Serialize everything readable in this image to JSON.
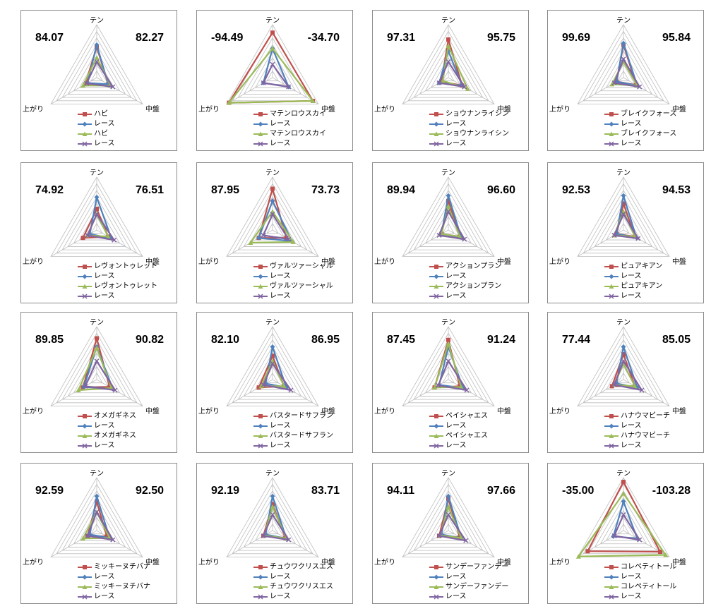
{
  "axes": [
    "テン",
    "中盤",
    "上がり"
  ],
  "chart_data": [
    {
      "type": "radar",
      "scores": [
        "84.07",
        "82.27"
      ],
      "legend": [
        "ハビ",
        "レース",
        "ハビ",
        "レース"
      ],
      "series": [
        {
          "name": "ハビ",
          "color": "#c0504d",
          "marker": "square",
          "values": [
            0.58,
            0.25,
            0.25
          ]
        },
        {
          "name": "レース",
          "color": "#4f81bd",
          "marker": "diamond",
          "values": [
            0.62,
            0.25,
            0.2
          ]
        },
        {
          "name": "ハビ",
          "color": "#9bbb59",
          "marker": "triangle",
          "values": [
            0.38,
            0.3,
            0.3
          ]
        },
        {
          "name": "レース",
          "color": "#8064a2",
          "marker": "x",
          "values": [
            0.3,
            0.35,
            0.22
          ]
        }
      ]
    },
    {
      "type": "radar",
      "scores": [
        "-94.49",
        "-34.70"
      ],
      "legend": [
        "マテンロウスカイ",
        "レース",
        "マテンロウスカイ",
        "レース"
      ],
      "series": [
        {
          "name": "マテンロウスカイ",
          "color": "#c0504d",
          "marker": "square",
          "values": [
            0.85,
            0.88,
            0.95
          ]
        },
        {
          "name": "レース",
          "color": "#4f81bd",
          "marker": "diamond",
          "values": [
            0.55,
            0.35,
            0.2
          ]
        },
        {
          "name": "マテンロウスカイ",
          "color": "#9bbb59",
          "marker": "triangle",
          "values": [
            0.55,
            0.88,
            0.95
          ]
        },
        {
          "name": "レース",
          "color": "#8064a2",
          "marker": "x",
          "values": [
            0.25,
            0.35,
            0.2
          ]
        }
      ]
    },
    {
      "type": "radar",
      "scores": [
        "97.31",
        "95.75"
      ],
      "legend": [
        "ショウナンライシン",
        "レース",
        "ショウナンライシン",
        "レース"
      ],
      "series": [
        {
          "name": "ショウナンライシン",
          "color": "#c0504d",
          "marker": "square",
          "values": [
            0.72,
            0.3,
            0.15
          ]
        },
        {
          "name": "レース",
          "color": "#4f81bd",
          "marker": "diamond",
          "values": [
            0.5,
            0.3,
            0.2
          ]
        },
        {
          "name": "ショウナンライシン",
          "color": "#9bbb59",
          "marker": "triangle",
          "values": [
            0.6,
            0.42,
            0.12
          ]
        },
        {
          "name": "レース",
          "color": "#8064a2",
          "marker": "x",
          "values": [
            0.3,
            0.35,
            0.2
          ]
        }
      ]
    },
    {
      "type": "radar",
      "scores": [
        "99.69",
        "95.84"
      ],
      "legend": [
        "ブレイクフォース",
        "レース",
        "ブレイクフォース",
        "レース"
      ],
      "series": [
        {
          "name": "ブレイクフォース",
          "color": "#c0504d",
          "marker": "square",
          "values": [
            0.62,
            0.28,
            0.15
          ]
        },
        {
          "name": "レース",
          "color": "#4f81bd",
          "marker": "diamond",
          "values": [
            0.65,
            0.3,
            0.15
          ]
        },
        {
          "name": "ブレイクフォース",
          "color": "#9bbb59",
          "marker": "triangle",
          "values": [
            0.3,
            0.3,
            0.25
          ]
        },
        {
          "name": "レース",
          "color": "#8064a2",
          "marker": "x",
          "values": [
            0.35,
            0.35,
            0.2
          ]
        }
      ]
    },
    {
      "type": "radar",
      "scores": [
        "74.92",
        "76.51"
      ],
      "legend": [
        "レヴォントゥレット",
        "レース",
        "レヴォントゥレット",
        "レース"
      ],
      "series": [
        {
          "name": "レヴォントゥレット",
          "color": "#c0504d",
          "marker": "square",
          "values": [
            0.4,
            0.25,
            0.3
          ]
        },
        {
          "name": "レース",
          "color": "#4f81bd",
          "marker": "diamond",
          "values": [
            0.62,
            0.32,
            0.15
          ]
        },
        {
          "name": "レヴォントゥレット",
          "color": "#9bbb59",
          "marker": "triangle",
          "values": [
            0.3,
            0.25,
            0.2
          ]
        },
        {
          "name": "レース",
          "color": "#8064a2",
          "marker": "x",
          "values": [
            0.3,
            0.38,
            0.2
          ]
        }
      ]
    },
    {
      "type": "radar",
      "scores": [
        "87.95",
        "73.73"
      ],
      "legend": [
        "ヴァルツァーシャル",
        "レース",
        "ヴァルツァーシャル",
        "レース"
      ],
      "series": [
        {
          "name": "ヴァルツァーシャル",
          "color": "#c0504d",
          "marker": "square",
          "values": [
            0.78,
            0.3,
            0.3
          ]
        },
        {
          "name": "レース",
          "color": "#4f81bd",
          "marker": "diamond",
          "values": [
            0.55,
            0.42,
            0.3
          ]
        },
        {
          "name": "ヴァルツァーシャル",
          "color": "#9bbb59",
          "marker": "triangle",
          "values": [
            0.35,
            0.45,
            0.48
          ]
        },
        {
          "name": "レース",
          "color": "#8064a2",
          "marker": "x",
          "values": [
            0.3,
            0.35,
            0.2
          ]
        }
      ]
    },
    {
      "type": "radar",
      "scores": [
        "89.94",
        "96.60"
      ],
      "legend": [
        "アクションプラン",
        "レース",
        "アクションプラン",
        "レース"
      ],
      "series": [
        {
          "name": "アクションプラン",
          "color": "#c0504d",
          "marker": "square",
          "values": [
            0.55,
            0.25,
            0.15
          ]
        },
        {
          "name": "レース",
          "color": "#4f81bd",
          "marker": "diamond",
          "values": [
            0.65,
            0.28,
            0.15
          ]
        },
        {
          "name": "アクションプラン",
          "color": "#9bbb59",
          "marker": "triangle",
          "values": [
            0.45,
            0.25,
            0.15
          ]
        },
        {
          "name": "レース",
          "color": "#8064a2",
          "marker": "x",
          "values": [
            0.35,
            0.35,
            0.2
          ]
        }
      ]
    },
    {
      "type": "radar",
      "scores": [
        "92.53",
        "94.53"
      ],
      "legend": [
        "ピュアキアン",
        "レース",
        "ピュアキアン",
        "レース"
      ],
      "series": [
        {
          "name": "ピュアキアン",
          "color": "#c0504d",
          "marker": "square",
          "values": [
            0.5,
            0.25,
            0.15
          ]
        },
        {
          "name": "レース",
          "color": "#4f81bd",
          "marker": "diamond",
          "values": [
            0.65,
            0.28,
            0.15
          ]
        },
        {
          "name": "ピュアキアン",
          "color": "#9bbb59",
          "marker": "triangle",
          "values": [
            0.35,
            0.25,
            0.2
          ]
        },
        {
          "name": "レース",
          "color": "#8064a2",
          "marker": "x",
          "values": [
            0.3,
            0.32,
            0.2
          ]
        }
      ]
    },
    {
      "type": "radar",
      "scores": [
        "89.85",
        "90.82"
      ],
      "legend": [
        "オメガギネス",
        "レース",
        "オメガギネス",
        "レース"
      ],
      "series": [
        {
          "name": "オメガギネス",
          "color": "#c0504d",
          "marker": "square",
          "values": [
            0.78,
            0.28,
            0.3
          ]
        },
        {
          "name": "レース",
          "color": "#4f81bd",
          "marker": "diamond",
          "values": [
            0.62,
            0.35,
            0.28
          ]
        },
        {
          "name": "オメガギネス",
          "color": "#9bbb59",
          "marker": "triangle",
          "values": [
            0.6,
            0.32,
            0.4
          ]
        },
        {
          "name": "レース",
          "color": "#8064a2",
          "marker": "x",
          "values": [
            0.35,
            0.4,
            0.25
          ]
        }
      ]
    },
    {
      "type": "radar",
      "scores": [
        "82.10",
        "86.95"
      ],
      "legend": [
        "バスタードサフラン",
        "レース",
        "バスタードサフラン",
        "レース"
      ],
      "series": [
        {
          "name": "バスタードサフラン",
          "color": "#c0504d",
          "marker": "square",
          "values": [
            0.45,
            0.25,
            0.3
          ]
        },
        {
          "name": "レース",
          "color": "#4f81bd",
          "marker": "diamond",
          "values": [
            0.62,
            0.3,
            0.15
          ]
        },
        {
          "name": "バスタードサフラン",
          "color": "#9bbb59",
          "marker": "triangle",
          "values": [
            0.35,
            0.25,
            0.25
          ]
        },
        {
          "name": "レース",
          "color": "#8064a2",
          "marker": "x",
          "values": [
            0.3,
            0.4,
            0.2
          ]
        }
      ]
    },
    {
      "type": "radar",
      "scores": [
        "87.45",
        "91.24"
      ],
      "legend": [
        "ペイシャエス",
        "レース",
        "ペイシャエス",
        "レース"
      ],
      "series": [
        {
          "name": "ペイシャエス",
          "color": "#c0504d",
          "marker": "square",
          "values": [
            0.75,
            0.25,
            0.3
          ]
        },
        {
          "name": "レース",
          "color": "#4f81bd",
          "marker": "diamond",
          "values": [
            0.62,
            0.32,
            0.2
          ]
        },
        {
          "name": "ペイシャエス",
          "color": "#9bbb59",
          "marker": "triangle",
          "values": [
            0.68,
            0.28,
            0.3
          ]
        },
        {
          "name": "レース",
          "color": "#8064a2",
          "marker": "x",
          "values": [
            0.35,
            0.4,
            0.22
          ]
        }
      ]
    },
    {
      "type": "radar",
      "scores": [
        "77.44",
        "85.05"
      ],
      "legend": [
        "ハナウマビーチ",
        "レース",
        "ハナウマビーチ",
        "レース"
      ],
      "series": [
        {
          "name": "ハナウマビーチ",
          "color": "#c0504d",
          "marker": "square",
          "values": [
            0.48,
            0.25,
            0.25
          ]
        },
        {
          "name": "レース",
          "color": "#4f81bd",
          "marker": "diamond",
          "values": [
            0.62,
            0.3,
            0.15
          ]
        },
        {
          "name": "ハナウマビーチ",
          "color": "#9bbb59",
          "marker": "triangle",
          "values": [
            0.3,
            0.25,
            0.2
          ]
        },
        {
          "name": "レース",
          "color": "#8064a2",
          "marker": "x",
          "values": [
            0.35,
            0.4,
            0.2
          ]
        }
      ]
    },
    {
      "type": "radar",
      "scores": [
        "92.59",
        "92.50"
      ],
      "legend": [
        "ミッキーヌチバナ",
        "レース",
        "ミッキーヌチバナ",
        "レース"
      ],
      "series": [
        {
          "name": "ミッキーヌチバナ",
          "color": "#c0504d",
          "marker": "square",
          "values": [
            0.55,
            0.22,
            0.2
          ]
        },
        {
          "name": "レース",
          "color": "#4f81bd",
          "marker": "diamond",
          "values": [
            0.65,
            0.28,
            0.15
          ]
        },
        {
          "name": "ミッキーヌチバナ",
          "color": "#9bbb59",
          "marker": "triangle",
          "values": [
            0.35,
            0.28,
            0.3
          ]
        },
        {
          "name": "レース",
          "color": "#8064a2",
          "marker": "x",
          "values": [
            0.35,
            0.35,
            0.2
          ]
        }
      ]
    },
    {
      "type": "radar",
      "scores": [
        "92.19",
        "83.71"
      ],
      "legend": [
        "チュウワクリスエス",
        "レース",
        "チュウワクリスエス",
        "レース"
      ],
      "series": [
        {
          "name": "チュウワクリスエス",
          "color": "#c0504d",
          "marker": "square",
          "values": [
            0.5,
            0.28,
            0.2
          ]
        },
        {
          "name": "レース",
          "color": "#4f81bd",
          "marker": "diamond",
          "values": [
            0.65,
            0.3,
            0.15
          ]
        },
        {
          "name": "チュウワクリスエス",
          "color": "#9bbb59",
          "marker": "triangle",
          "values": [
            0.45,
            0.3,
            0.18
          ]
        },
        {
          "name": "レース",
          "color": "#8064a2",
          "marker": "x",
          "values": [
            0.3,
            0.35,
            0.2
          ]
        }
      ]
    },
    {
      "type": "radar",
      "scores": [
        "94.11",
        "97.66"
      ],
      "legend": [
        "サンデーファンデー",
        "レース",
        "サンデーファンデー",
        "レース"
      ],
      "series": [
        {
          "name": "サンデーファンデー",
          "color": "#c0504d",
          "marker": "square",
          "values": [
            0.6,
            0.25,
            0.2
          ]
        },
        {
          "name": "レース",
          "color": "#4f81bd",
          "marker": "diamond",
          "values": [
            0.65,
            0.28,
            0.15
          ]
        },
        {
          "name": "サンデーファンデー",
          "color": "#9bbb59",
          "marker": "triangle",
          "values": [
            0.45,
            0.28,
            0.18
          ]
        },
        {
          "name": "レース",
          "color": "#8064a2",
          "marker": "x",
          "values": [
            0.3,
            0.38,
            0.2
          ]
        }
      ]
    },
    {
      "type": "radar",
      "scores": [
        "-35.00",
        "-103.28"
      ],
      "legend": [
        "コレペティトール",
        "レース",
        "コレペティトール",
        "レース"
      ],
      "series": [
        {
          "name": "コレペティトール",
          "color": "#c0504d",
          "marker": "square",
          "values": [
            0.92,
            0.8,
            0.78
          ]
        },
        {
          "name": "レース",
          "color": "#4f81bd",
          "marker": "diamond",
          "values": [
            0.55,
            0.3,
            0.22
          ]
        },
        {
          "name": "コレペティトール",
          "color": "#9bbb59",
          "marker": "triangle",
          "values": [
            0.7,
            0.92,
            0.98
          ]
        },
        {
          "name": "レース",
          "color": "#8064a2",
          "marker": "x",
          "values": [
            0.3,
            0.35,
            0.2
          ]
        }
      ]
    }
  ]
}
